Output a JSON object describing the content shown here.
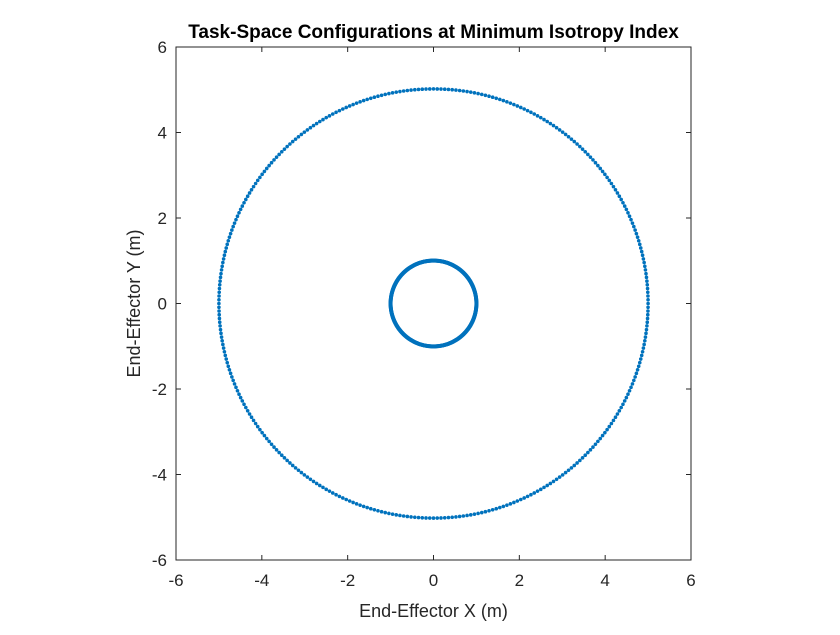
{
  "chart_data": {
    "type": "scatter",
    "title": "Task-Space Configurations at Minimum Isotropy Index",
    "xlabel": "End-Effector X (m)",
    "ylabel": "End-Effector Y (m)",
    "xlim": [
      -6,
      6
    ],
    "ylim": [
      -6,
      6
    ],
    "xticks": [
      -6,
      -4,
      -2,
      0,
      2,
      4,
      6
    ],
    "yticks": [
      -6,
      -4,
      -2,
      0,
      2,
      4,
      6
    ],
    "xtick_labels": [
      "-6",
      "-4",
      "-2",
      "0",
      "2",
      "4",
      "6"
    ],
    "ytick_labels": [
      "-6",
      "-4",
      "-2",
      "0",
      "2",
      "4",
      "6"
    ],
    "grid": false,
    "legend": "none",
    "marker_color": "#0072BD",
    "series": [
      {
        "shape": "circle",
        "center": [
          0,
          0
        ],
        "radius": 5,
        "points": 360
      },
      {
        "shape": "circle",
        "center": [
          0,
          0
        ],
        "radius": 1,
        "points": 360
      }
    ]
  }
}
